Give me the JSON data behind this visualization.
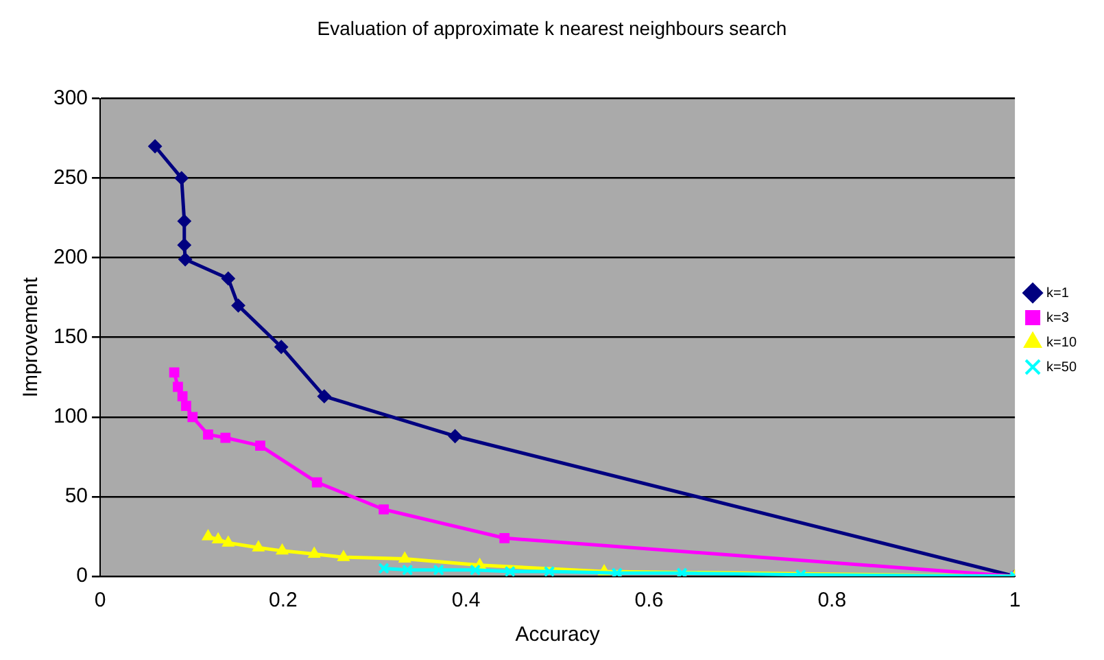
{
  "chart_data": {
    "type": "line",
    "title": "Evaluation of approximate k nearest neighbours search",
    "xlabel": "Accuracy",
    "ylabel": "Improvement",
    "xlim": [
      0,
      1
    ],
    "xticks": [
      0,
      0.2,
      0.4,
      0.6,
      0.8,
      1
    ],
    "ylim": [
      0,
      300
    ],
    "yticks": [
      0,
      50,
      100,
      150,
      200,
      250,
      300
    ],
    "grid": "y",
    "legend": "right",
    "series": [
      {
        "name": "k=1",
        "color": "#000080",
        "marker": "diamond",
        "x": [
          0.06,
          0.089,
          0.092,
          0.092,
          0.093,
          0.14,
          0.151,
          0.198,
          0.245,
          0.388,
          1
        ],
        "values": [
          270,
          250,
          223,
          208,
          199,
          187,
          170,
          144,
          113,
          88,
          0
        ]
      },
      {
        "name": "k=3",
        "color": "#ff00ff",
        "marker": "square",
        "x": [
          0.081,
          0.085,
          0.09,
          0.094,
          0.101,
          0.118,
          0.137,
          0.175,
          0.237,
          0.31,
          0.442,
          1
        ],
        "values": [
          128,
          119,
          113,
          107,
          100,
          89,
          87,
          82,
          59,
          42,
          24,
          0
        ]
      },
      {
        "name": "k=10",
        "color": "#ffff00",
        "marker": "triangle",
        "x": [
          0.118,
          0.129,
          0.14,
          0.173,
          0.199,
          0.234,
          0.266,
          0.333,
          0.415,
          0.551,
          1
        ],
        "values": [
          25,
          23,
          21,
          18,
          16,
          14,
          12,
          11,
          7,
          3,
          0
        ]
      },
      {
        "name": "k=50",
        "color": "#00ffff",
        "marker": "cross",
        "x": [
          0.31,
          0.336,
          0.37,
          0.41,
          0.448,
          0.491,
          0.565,
          0.636,
          0.766,
          1
        ],
        "values": [
          5,
          4,
          4,
          4,
          3,
          3,
          2,
          2,
          1,
          0
        ]
      }
    ]
  }
}
